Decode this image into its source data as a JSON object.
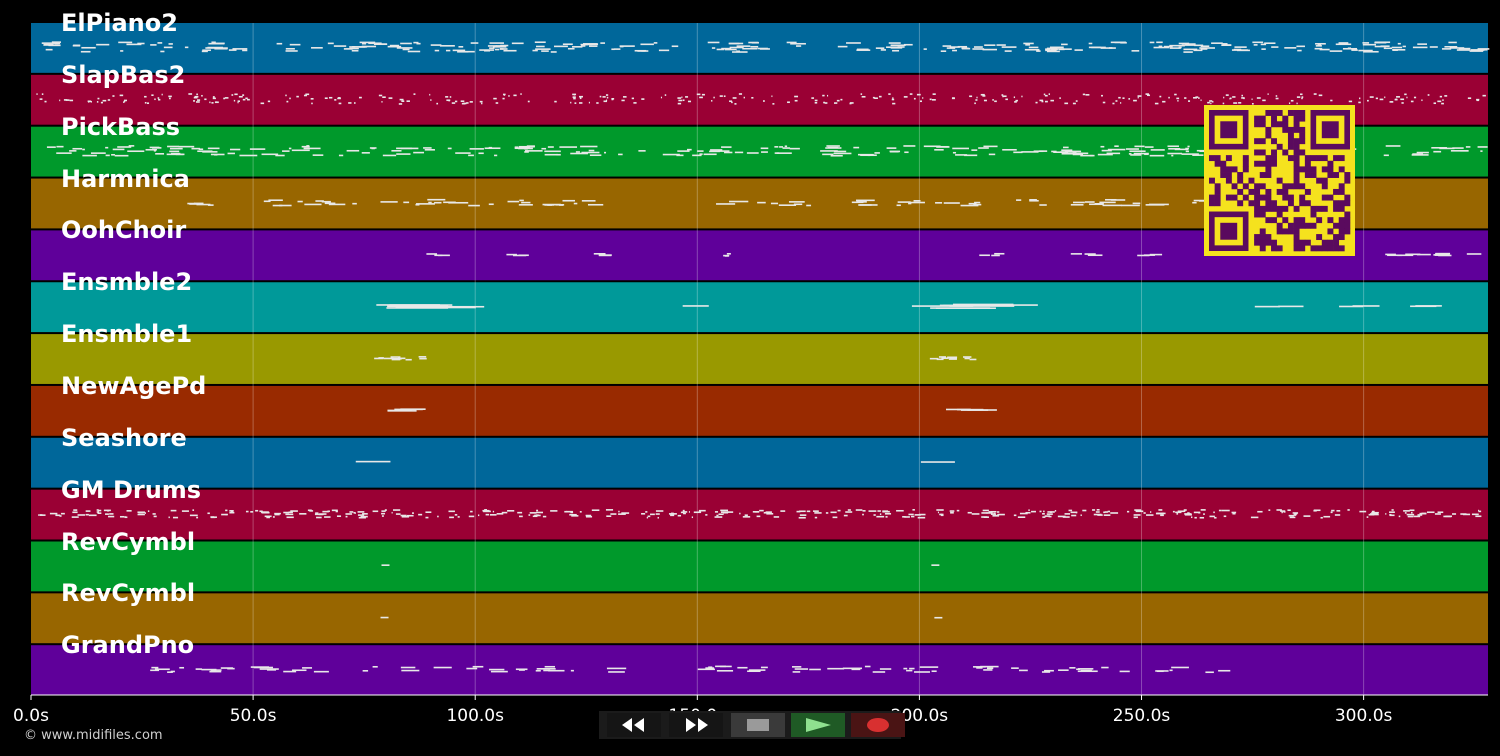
{
  "source_note": "© www.midifiles.com",
  "timeline": {
    "max_seconds": 328,
    "tick_values": [
      0,
      50,
      100,
      150,
      200,
      250,
      300
    ],
    "tick_labels": [
      "0.0s",
      "50.0s",
      "100.0s",
      "150.0s",
      "200.0s",
      "250.0s",
      "300.0s"
    ],
    "grid": true
  },
  "tracks": [
    {
      "name": "ElPiano2",
      "color": "#00679a",
      "density": "dense"
    },
    {
      "name": "SlapBas2",
      "color": "#9a0034",
      "density": "dense-dotted"
    },
    {
      "name": "PickBass",
      "color": "#00992b",
      "density": "dense"
    },
    {
      "name": "Harmnica",
      "color": "#986600",
      "density": "medium"
    },
    {
      "name": "OohChoir",
      "color": "#5f009a",
      "density": "sparse"
    },
    {
      "name": "Ensmble2",
      "color": "#009999",
      "density": "sparse"
    },
    {
      "name": "Ensmble1",
      "color": "#999900",
      "density": "sparse"
    },
    {
      "name": "NewAgePd",
      "color": "#992a00",
      "density": "sparse"
    },
    {
      "name": "Seashore",
      "color": "#00679a",
      "density": "sparse"
    },
    {
      "name": "GM Drums",
      "color": "#9a0034",
      "density": "dense"
    },
    {
      "name": "RevCymbl",
      "color": "#00992b",
      "density": "sparse"
    },
    {
      "name": "RevCymbl",
      "color": "#986600",
      "density": "sparse"
    },
    {
      "name": "GrandPno",
      "color": "#5f009a",
      "density": "medium"
    }
  ],
  "qr_code": {
    "fg": "#5a0a5e",
    "bg": "#f5e21e"
  },
  "transport": {
    "buttons": [
      {
        "id": "rewind",
        "icon": "rewind-icon"
      },
      {
        "id": "fast-forward",
        "icon": "fast-forward-icon"
      },
      {
        "id": "stop",
        "icon": "stop-icon"
      },
      {
        "id": "play",
        "icon": "play-icon"
      },
      {
        "id": "record",
        "icon": "record-icon"
      }
    ]
  }
}
